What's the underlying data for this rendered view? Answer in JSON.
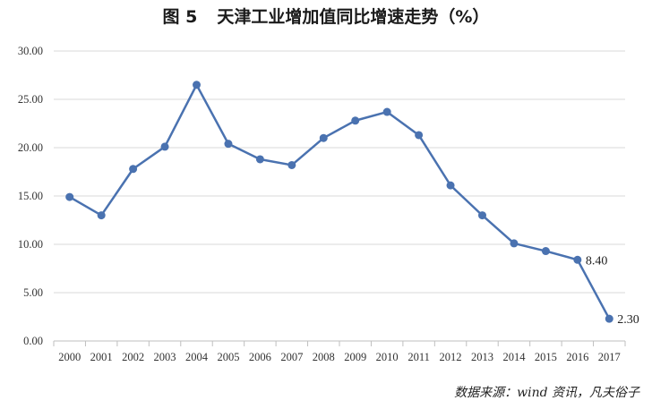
{
  "chart_data": {
    "type": "line",
    "title_prefix": "图 5",
    "title": "天津工业增加值同比增速走势（%）",
    "source": "数据来源：wind 资讯，凡夫俗子",
    "categories": [
      "2000",
      "2001",
      "2002",
      "2003",
      "2004",
      "2005",
      "2006",
      "2007",
      "2008",
      "2009",
      "2010",
      "2011",
      "2012",
      "2013",
      "2014",
      "2015",
      "2016",
      "2017"
    ],
    "series": [
      {
        "values": [
          14.9,
          13.0,
          17.8,
          20.1,
          26.5,
          20.4,
          18.8,
          18.2,
          21.0,
          22.8,
          23.7,
          21.3,
          16.1,
          13.0,
          10.1,
          9.3,
          8.4,
          2.3
        ]
      }
    ],
    "data_labels": [
      {
        "index": 16,
        "text": "8.40"
      },
      {
        "index": 17,
        "text": "2.30"
      }
    ],
    "y_ticks": [
      "0.00",
      "5.00",
      "10.00",
      "15.00",
      "20.00",
      "25.00",
      "30.00"
    ],
    "ylim": [
      0,
      30
    ],
    "grid": true,
    "colors": {
      "line": "#4a72b0",
      "grid": "#d9d9d9",
      "axis": "#bfbfbf"
    }
  }
}
